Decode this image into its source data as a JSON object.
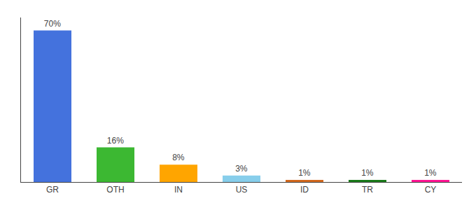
{
  "chart_data": {
    "type": "bar",
    "categories": [
      "GR",
      "OTH",
      "IN",
      "US",
      "ID",
      "TR",
      "CY"
    ],
    "values": [
      70,
      16,
      8,
      3,
      1,
      1,
      1
    ],
    "value_labels": [
      "70%",
      "16%",
      "8%",
      "3%",
      "1%",
      "1%",
      "1%"
    ],
    "colors": [
      "#4472DD",
      "#3CB832",
      "#FFA500",
      "#87CEEB",
      "#D2691E",
      "#1A7A1A",
      "#FF1493"
    ],
    "ylim": [
      0,
      76
    ],
    "grid": false,
    "data_labels": true,
    "tick_labels": "x"
  }
}
